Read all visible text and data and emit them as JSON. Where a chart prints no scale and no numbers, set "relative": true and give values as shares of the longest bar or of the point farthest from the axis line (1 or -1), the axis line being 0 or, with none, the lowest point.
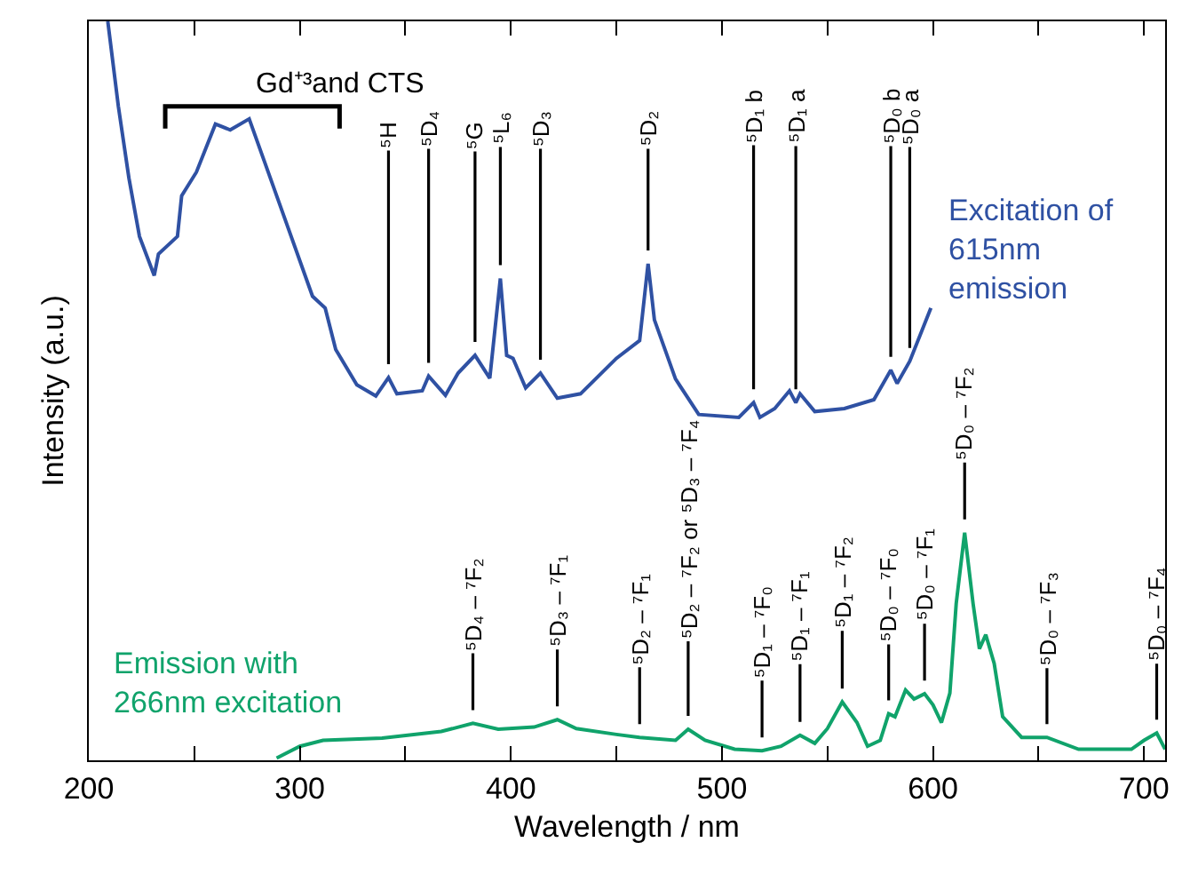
{
  "chart_data": {
    "type": "line",
    "relative": true,
    "xlabel": "Wavelength / nm",
    "ylabel": "Intensity (a.u.)",
    "xlim": [
      200,
      710
    ],
    "xticks": [
      200,
      {
        "value": 250,
        "label": null
      },
      300,
      {
        "value": 350,
        "label": null
      },
      400,
      {
        "value": 450,
        "label": null
      },
      500,
      {
        "value": 550,
        "label": null
      },
      600,
      {
        "value": 650,
        "label": null
      },
      700
    ],
    "tick_labels": "x",
    "legend": false,
    "marker": "none",
    "line_style": "solid",
    "series": [
      {
        "name": "Excitation of\n615nm\nemission",
        "color": "#2f51a3",
        "x": [
          209,
          214,
          219,
          224,
          231,
          233,
          242,
          244,
          251,
          260,
          267,
          276,
          283,
          294,
          306,
          312,
          317,
          327,
          336,
          342,
          346,
          358,
          361,
          369,
          375,
          383,
          390,
          395,
          398,
          401,
          407,
          414,
          422,
          433,
          450,
          461,
          465,
          468,
          478,
          489,
          508,
          515,
          518,
          525,
          532,
          535,
          537,
          544,
          558,
          572,
          580,
          583,
          589,
          599
        ],
        "values": [
          1.0,
          0.885,
          0.788,
          0.709,
          0.656,
          0.685,
          0.709,
          0.764,
          0.796,
          0.861,
          0.853,
          0.868,
          0.812,
          0.724,
          0.628,
          0.612,
          0.556,
          0.508,
          0.493,
          0.518,
          0.496,
          0.5,
          0.52,
          0.494,
          0.524,
          0.548,
          0.517,
          0.652,
          0.548,
          0.544,
          0.504,
          0.524,
          0.49,
          0.496,
          0.544,
          0.568,
          0.672,
          0.596,
          0.516,
          0.468,
          0.464,
          0.484,
          0.464,
          0.476,
          0.5,
          0.484,
          0.496,
          0.472,
          0.476,
          0.488,
          0.528,
          0.51,
          0.54,
          0.612
        ]
      },
      {
        "name": "Emission with\n266nm excitation",
        "color": "#10a36b",
        "x": [
          289,
          300,
          311,
          339,
          367,
          382,
          394,
          411,
          422,
          431,
          450,
          461,
          478,
          484,
          492,
          506,
          519,
          528,
          537,
          544,
          550,
          557,
          564,
          569,
          575,
          579,
          582,
          587,
          591,
          596,
          600,
          604,
          608,
          611,
          615,
          619,
          622,
          625,
          629,
          633,
          642,
          654,
          669,
          694,
          700,
          706,
          710
        ],
        "values": [
          0.003,
          0.019,
          0.027,
          0.03,
          0.039,
          0.05,
          0.042,
          0.045,
          0.055,
          0.043,
          0.035,
          0.031,
          0.027,
          0.042,
          0.027,
          0.015,
          0.013,
          0.019,
          0.034,
          0.023,
          0.043,
          0.079,
          0.051,
          0.019,
          0.027,
          0.063,
          0.059,
          0.095,
          0.083,
          0.09,
          0.075,
          0.051,
          0.091,
          0.212,
          0.308,
          0.212,
          0.151,
          0.17,
          0.131,
          0.059,
          0.031,
          0.031,
          0.015,
          0.015,
          0.027,
          0.037,
          0.015
        ]
      }
    ],
    "annotations": [
      "Gd⁺³and CTS",
      {
        "text": "⁵D₂ – ⁷F₂ or ⁵D₃ – ⁷F₄",
        "x": 484,
        "y": 0.042
      },
      {
        "text": "⁵H",
        "x": 342,
        "y": 0.518
      },
      {
        "text": "⁵D₄",
        "x": 361,
        "y": 0.52
      },
      {
        "text": "⁵G",
        "x": 383,
        "y": 0.548
      },
      {
        "text": "⁵L₆",
        "x": 395,
        "y": 0.652
      },
      {
        "text": "⁵D₃",
        "x": 414,
        "y": 0.524
      },
      {
        "text": "⁵D₂",
        "x": 465,
        "y": 0.672
      },
      {
        "text": "⁵D₁ b",
        "x": 515,
        "y": 0.484
      },
      {
        "text": "⁵D₁ a",
        "x": 535,
        "y": 0.484
      },
      {
        "text": "⁵D₀ b",
        "x": 580,
        "y": 0.528
      },
      {
        "text": "⁵D₀ a",
        "x": 589,
        "y": 0.54
      },
      {
        "text": "⁵D₄ – ⁷F₂",
        "x": 382,
        "y": 0.05
      },
      {
        "text": "⁵D₃ – ⁷F₁",
        "x": 422,
        "y": 0.055
      },
      {
        "text": "⁵D₂ – ⁷F₁",
        "x": 461,
        "y": 0.031
      },
      {
        "text": "⁵D₁ – ⁷F₀",
        "x": 519,
        "y": 0.013
      },
      {
        "text": "⁵D₁ – ⁷F₁",
        "x": 537,
        "y": 0.034
      },
      {
        "text": "⁵D₁ – ⁷F₂",
        "x": 557,
        "y": 0.079
      },
      {
        "text": "⁵D₀ – ⁷F₀",
        "x": 579,
        "y": 0.063
      },
      {
        "text": "⁵D₀ – ⁷F₁",
        "x": 596,
        "y": 0.09
      },
      {
        "text": "⁵D₀ – ⁷F₂",
        "x": 615,
        "y": 0.308
      },
      {
        "text": "⁵D₀ – ⁷F₃",
        "x": 654,
        "y": 0.031
      },
      {
        "text": "⁵D₀ – ⁷F₄",
        "x": 706,
        "y": 0.037
      }
    ]
  }
}
